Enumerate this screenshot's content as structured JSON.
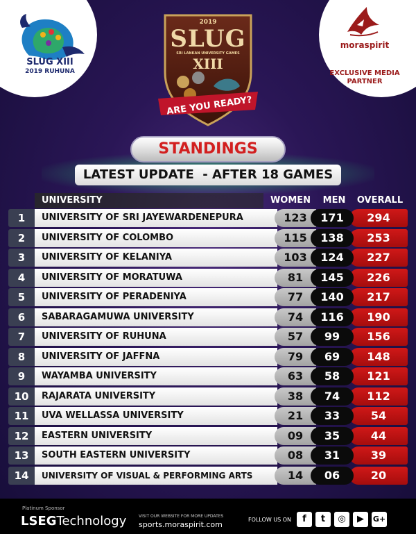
{
  "logos": {
    "slug_left": {
      "title": "SLUG XIII",
      "subtitle": "2019   RUHUNA",
      "icon": "peacock-logo-icon"
    },
    "moraspirit": {
      "name": "moraspirit",
      "partner_line1": "EXCLUSIVE MEDIA",
      "partner_line2": "PARTNER",
      "icon": "shark-logo-icon"
    },
    "shield": {
      "year": "2019",
      "title": "SLUG",
      "subtitle": "SRI LANKAN UNIVERSITY GAMES",
      "numeral": "XIII",
      "ribbon": "ARE YOU READY?"
    }
  },
  "banner": {
    "title": "STANDINGS",
    "update": "LATEST UPDATE  - AFTER 18 GAMES"
  },
  "table": {
    "headers": {
      "university": "UNIVERSITY",
      "women": "WOMEN",
      "men": "MEN",
      "overall": "OVERALL"
    },
    "rows": [
      {
        "rank": "1",
        "name": "UNIVERSITY OF SRI JAYEWARDENEPURA",
        "women": "123",
        "men": "171",
        "overall": "294"
      },
      {
        "rank": "2",
        "name": "UNIVERSITY OF COLOMBO",
        "women": "115",
        "men": "138",
        "overall": "253"
      },
      {
        "rank": "3",
        "name": "UNIVERSITY OF KELANIYA",
        "women": "103",
        "men": "124",
        "overall": "227"
      },
      {
        "rank": "4",
        "name": "UNIVERSITY OF MORATUWA",
        "women": "81",
        "men": "145",
        "overall": "226"
      },
      {
        "rank": "5",
        "name": "UNIVERSITY OF PERADENIYA",
        "women": "77",
        "men": "140",
        "overall": "217"
      },
      {
        "rank": "6",
        "name": "SABARAGAMUWA UNIVERSITY",
        "women": "74",
        "men": "116",
        "overall": "190"
      },
      {
        "rank": "7",
        "name": "UNIVERSITY OF RUHUNA",
        "women": "57",
        "men": "99",
        "overall": "156"
      },
      {
        "rank": "8",
        "name": "UNIVERSITY OF JAFFNA",
        "women": "79",
        "men": "69",
        "overall": "148"
      },
      {
        "rank": "9",
        "name": "WAYAMBA UNIVERSITY",
        "women": "63",
        "men": "58",
        "overall": "121"
      },
      {
        "rank": "10",
        "name": "RAJARATA UNIVERSITY",
        "women": "38",
        "men": "74",
        "overall": "112"
      },
      {
        "rank": "11",
        "name": "UVA WELLASSA UNIVERSITY",
        "women": "21",
        "men": "33",
        "overall": "54"
      },
      {
        "rank": "12",
        "name": "EASTERN UNIVERSITY",
        "women": "09",
        "men": "35",
        "overall": "44"
      },
      {
        "rank": "13",
        "name": "SOUTH EASTERN UNIVERSITY",
        "women": "08",
        "men": "31",
        "overall": "39"
      },
      {
        "rank": "14",
        "name": "UNIVERSITY OF VISUAL & PERFORMING ARTS",
        "women": "14",
        "men": "06",
        "overall": "20"
      }
    ]
  },
  "footer": {
    "sponsor_label": "Platinum Sponsor",
    "sponsor_name": "LSEG",
    "sponsor_name_suffix": "Technology",
    "visit_text": "VISIT OUR WEBSITE FOR MORE UPDATES",
    "website": "sports.moraspirit.com",
    "follow_label": "FOLLOW US ON",
    "social": [
      {
        "icon": "facebook-icon",
        "glyph": "f"
      },
      {
        "icon": "twitter-icon",
        "glyph": "t"
      },
      {
        "icon": "instagram-icon",
        "glyph": "◎"
      },
      {
        "icon": "youtube-icon",
        "glyph": "▶"
      },
      {
        "icon": "google-plus-icon",
        "glyph": "G+"
      }
    ]
  },
  "colors": {
    "accent_red": "#d01818",
    "background": "#2a1656",
    "glow_green": "#3cff8c"
  }
}
